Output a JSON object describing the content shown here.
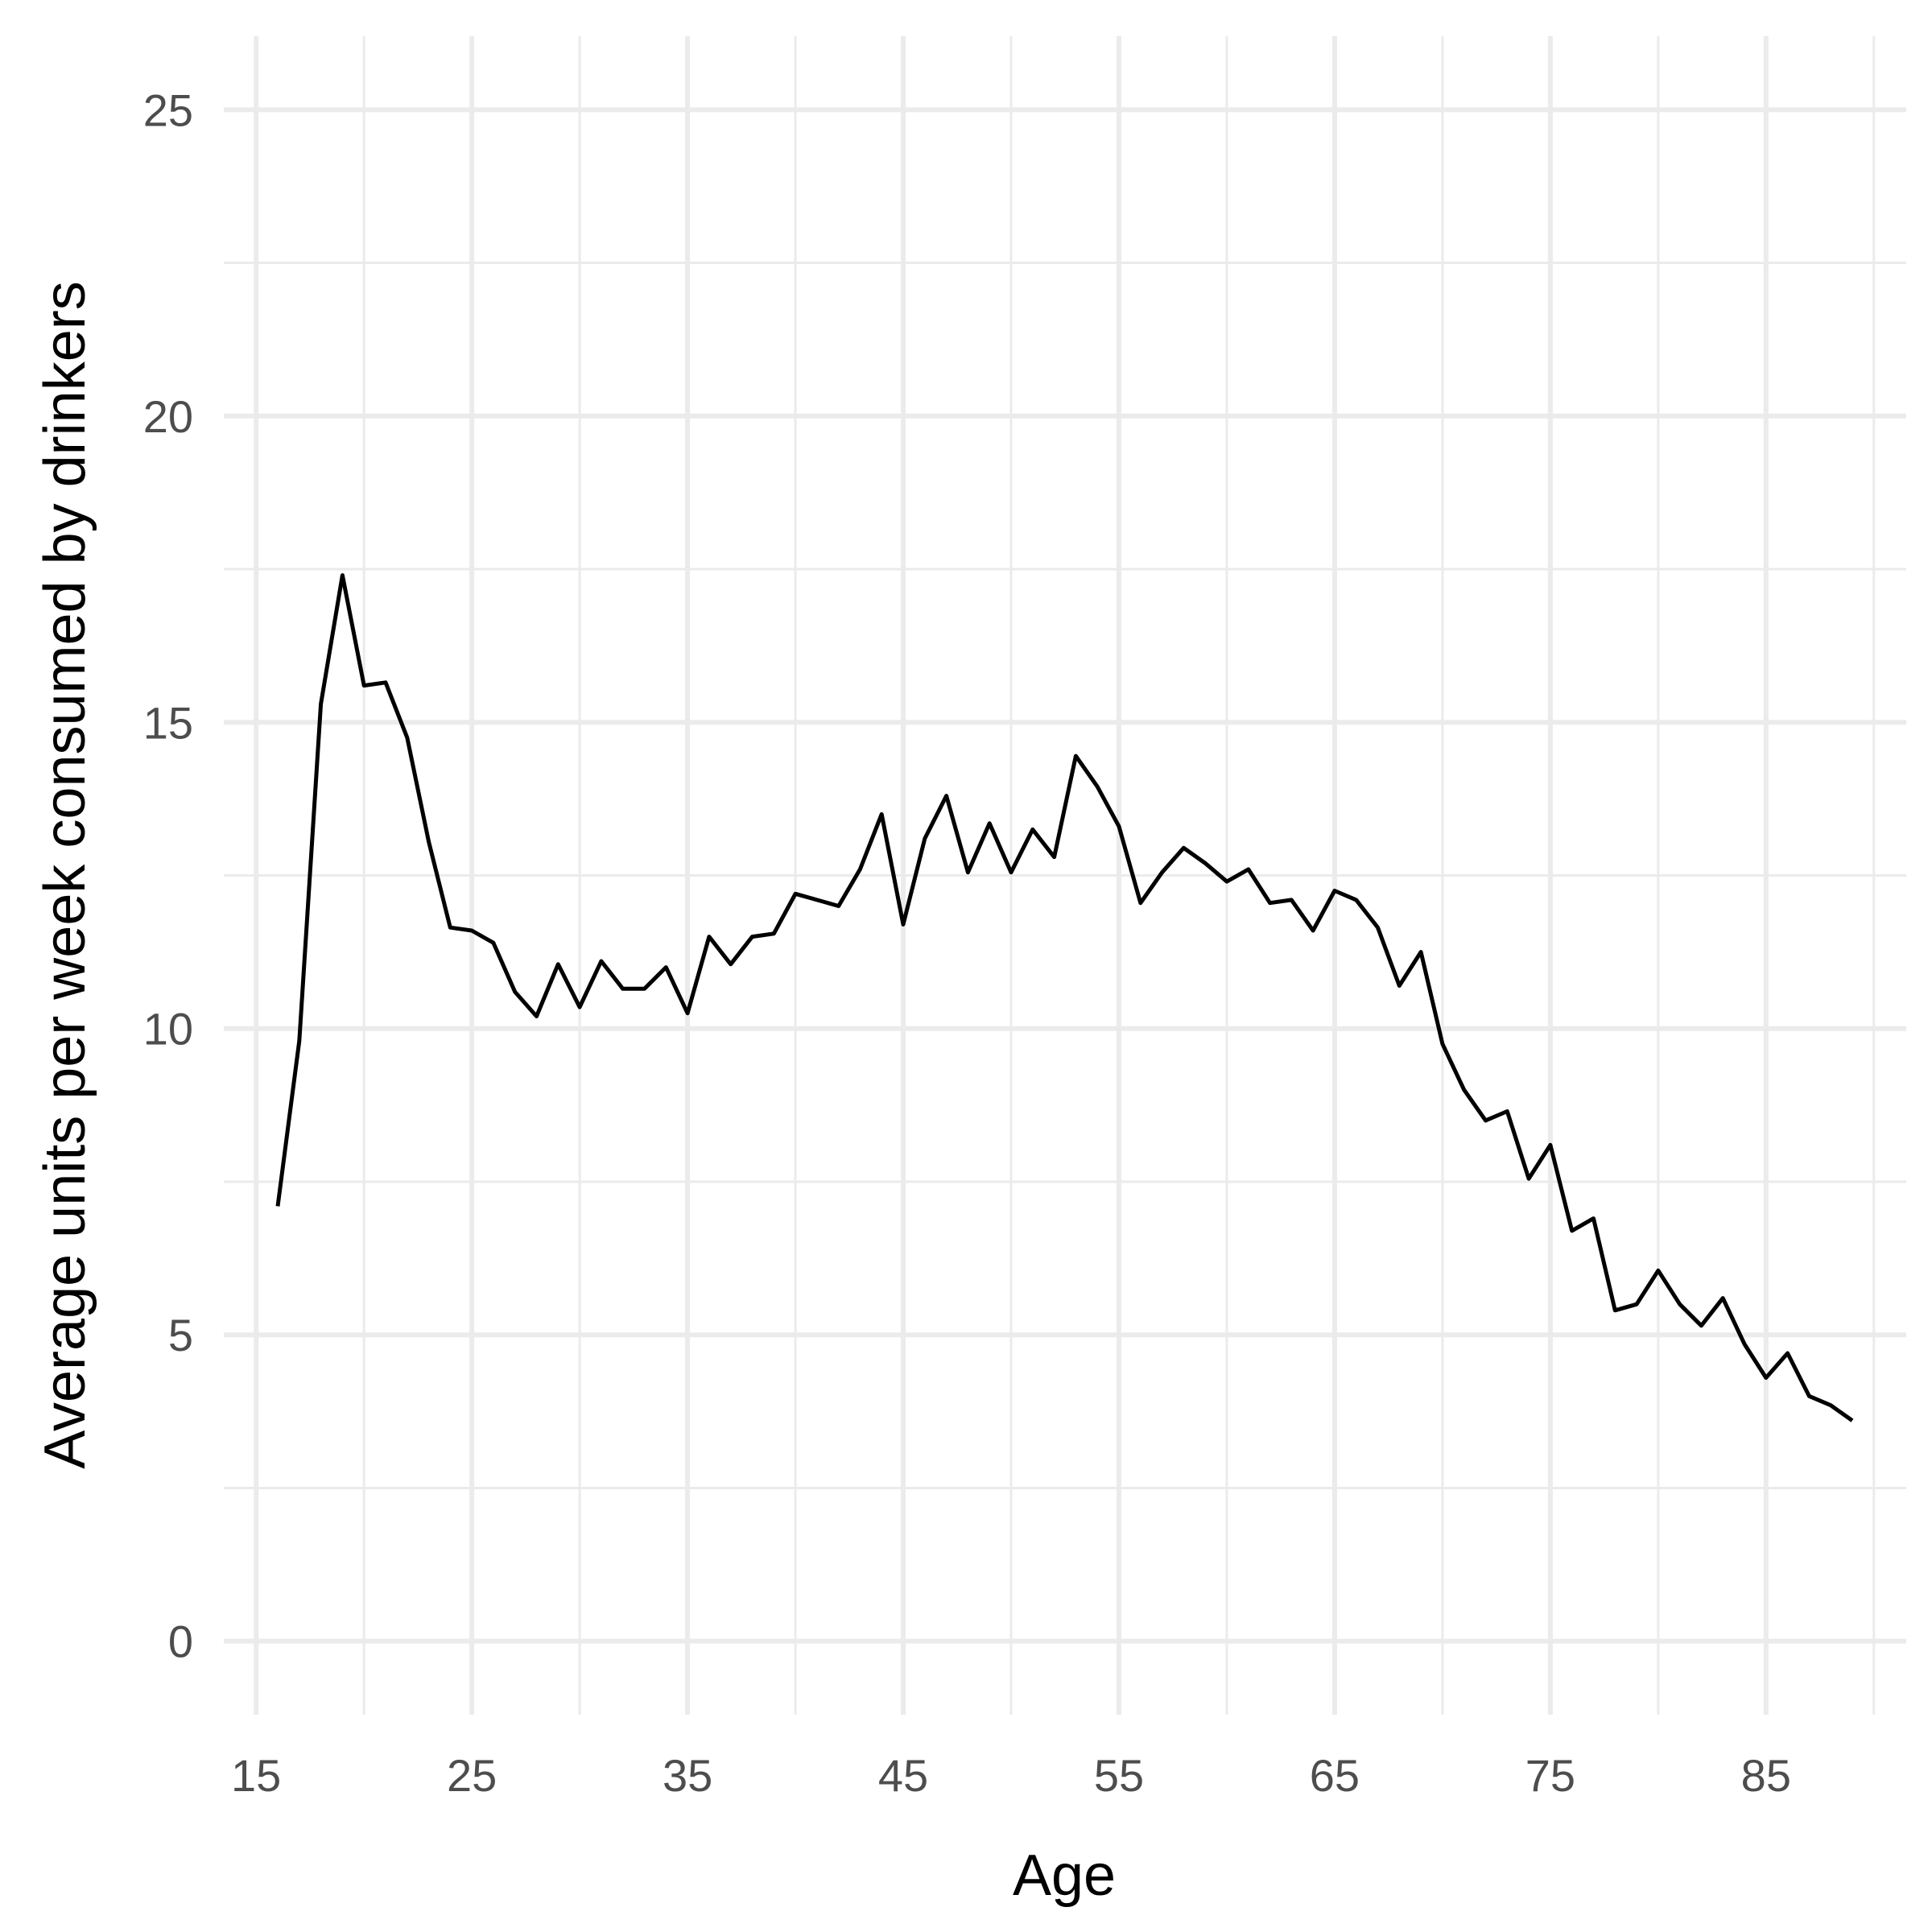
{
  "chart_data": {
    "type": "line",
    "title": "",
    "xlabel": "Age",
    "ylabel": "Average units per week consumed by drinkers",
    "xlim": [
      13.5,
      91.5
    ],
    "ylim": [
      -1.2,
      26.2
    ],
    "x_ticks": [
      15,
      25,
      35,
      45,
      55,
      65,
      75,
      85
    ],
    "x_minor_ticks": [
      20,
      30,
      40,
      50,
      60,
      70,
      80,
      90
    ],
    "y_ticks": [
      0,
      5,
      10,
      15,
      20,
      25
    ],
    "y_minor_ticks": [
      2.5,
      7.5,
      12.5,
      17.5,
      22.5
    ],
    "grid": true,
    "line_color": "#000000",
    "series": [
      {
        "x": [
          16,
          17,
          18,
          19,
          20,
          21,
          22,
          23,
          24,
          25,
          26,
          27,
          28,
          29,
          30,
          31,
          32,
          33,
          34,
          35,
          36,
          37,
          38,
          39,
          40,
          41,
          42,
          43,
          44,
          45,
          46,
          47,
          48,
          49,
          50,
          51,
          52,
          53,
          54,
          55,
          56,
          57,
          58,
          59,
          60,
          61,
          62,
          63,
          64,
          65,
          66,
          67,
          68,
          69,
          70,
          71,
          72,
          73,
          74,
          75,
          76,
          77,
          78,
          79,
          80,
          81,
          82,
          83,
          84,
          85,
          86,
          87,
          88,
          89
        ],
        "values": [
          7.1,
          9.8,
          15.3,
          17.4,
          15.6,
          15.65,
          14.75,
          13.05,
          11.65,
          11.6,
          11.4,
          10.6,
          10.2,
          11.05,
          10.35,
          11.1,
          10.65,
          10.65,
          11.0,
          10.25,
          11.5,
          11.05,
          11.5,
          11.55,
          12.2,
          12.1,
          12.0,
          12.6,
          13.5,
          11.7,
          13.1,
          13.8,
          12.55,
          13.35,
          12.55,
          13.25,
          12.8,
          14.45,
          13.95,
          13.3,
          12.05,
          12.55,
          12.95,
          12.7,
          12.4,
          12.6,
          12.05,
          12.1,
          11.6,
          12.25,
          12.1,
          11.65,
          10.7,
          11.25,
          9.75,
          9.0,
          8.5,
          8.65,
          7.55,
          8.1,
          6.7,
          6.9,
          5.4,
          5.5,
          6.05,
          5.5,
          5.15,
          5.6,
          4.85,
          4.3,
          4.7,
          4.0,
          3.85,
          3.6
        ]
      }
    ]
  }
}
